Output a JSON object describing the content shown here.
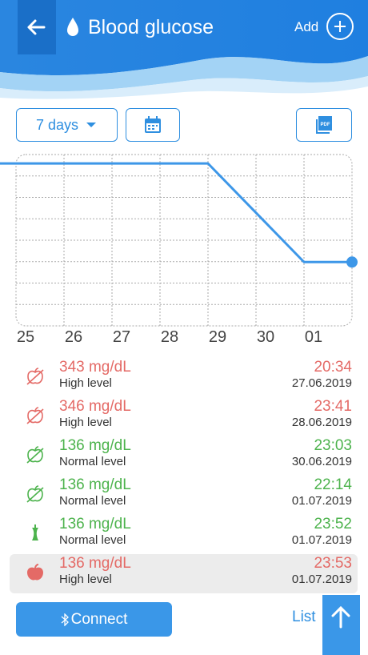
{
  "header": {
    "title": "Blood glucose",
    "add": "Add"
  },
  "controls": {
    "period": "7 days"
  },
  "chart_data": {
    "type": "line",
    "categories": [
      "25",
      "26",
      "27",
      "28",
      "29",
      "30",
      "01",
      null
    ],
    "values": [
      346,
      346,
      346,
      346,
      346,
      241,
      136,
      136
    ],
    "color": "#3d97e8",
    "ylim": [
      0,
      365
    ],
    "grid": true
  },
  "readings": [
    {
      "value": "343 mg/dL",
      "level": "High level",
      "time": "20:34",
      "date": "27.06.2019",
      "color": "#e46a66",
      "icon": "crossed"
    },
    {
      "value": "346 mg/dL",
      "level": "High level",
      "time": "23:41",
      "date": "28.06.2019",
      "color": "#e46a66",
      "icon": "crossed"
    },
    {
      "value": "136 mg/dL",
      "level": "Normal level",
      "time": "23:03",
      "date": "30.06.2019",
      "color": "#4db34d",
      "icon": "crossed"
    },
    {
      "value": "136 mg/dL",
      "level": "Normal level",
      "time": "22:14",
      "date": "01.07.2019",
      "color": "#4db34d",
      "icon": "crossed"
    },
    {
      "value": "136 mg/dL",
      "level": "Normal level",
      "time": "23:52",
      "date": "01.07.2019",
      "color": "#4db34d",
      "icon": "core"
    },
    {
      "value": "136 mg/dL",
      "level": "High level",
      "time": "23:53",
      "date": "01.07.2019",
      "color": "#e46a66",
      "icon": "apple",
      "selected": true
    }
  ],
  "footer": {
    "connect": "Connect",
    "list": "List"
  }
}
